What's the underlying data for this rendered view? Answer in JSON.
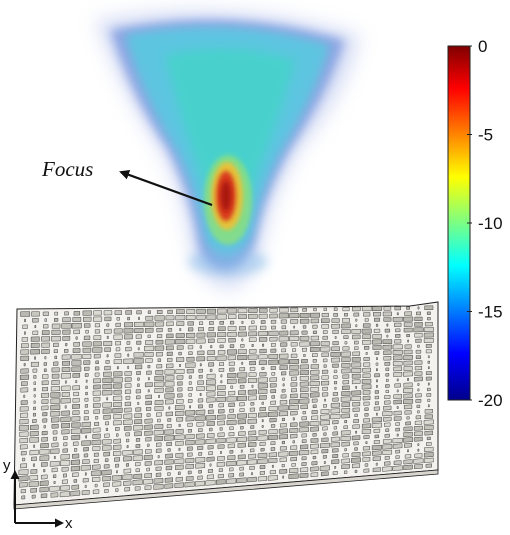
{
  "annotation": {
    "label": "Focus"
  },
  "colorbar": {
    "ticks": [
      "0",
      "-5",
      "-10",
      "-15",
      "-20"
    ],
    "tick_values": [
      0,
      -5,
      -10,
      -15,
      -20
    ],
    "range": [
      -20,
      0
    ],
    "colormap": "jet"
  },
  "axes": {
    "x_label": "x",
    "y_label": "y"
  },
  "colors": {
    "plume_low": "#5a8fd8",
    "plume_mid": "#4fd2cc",
    "focus_hot": "#c8281a",
    "tile_fill": "#c8c8c0",
    "plate_fill": "#f4f2ee",
    "edge": "#222222"
  }
}
